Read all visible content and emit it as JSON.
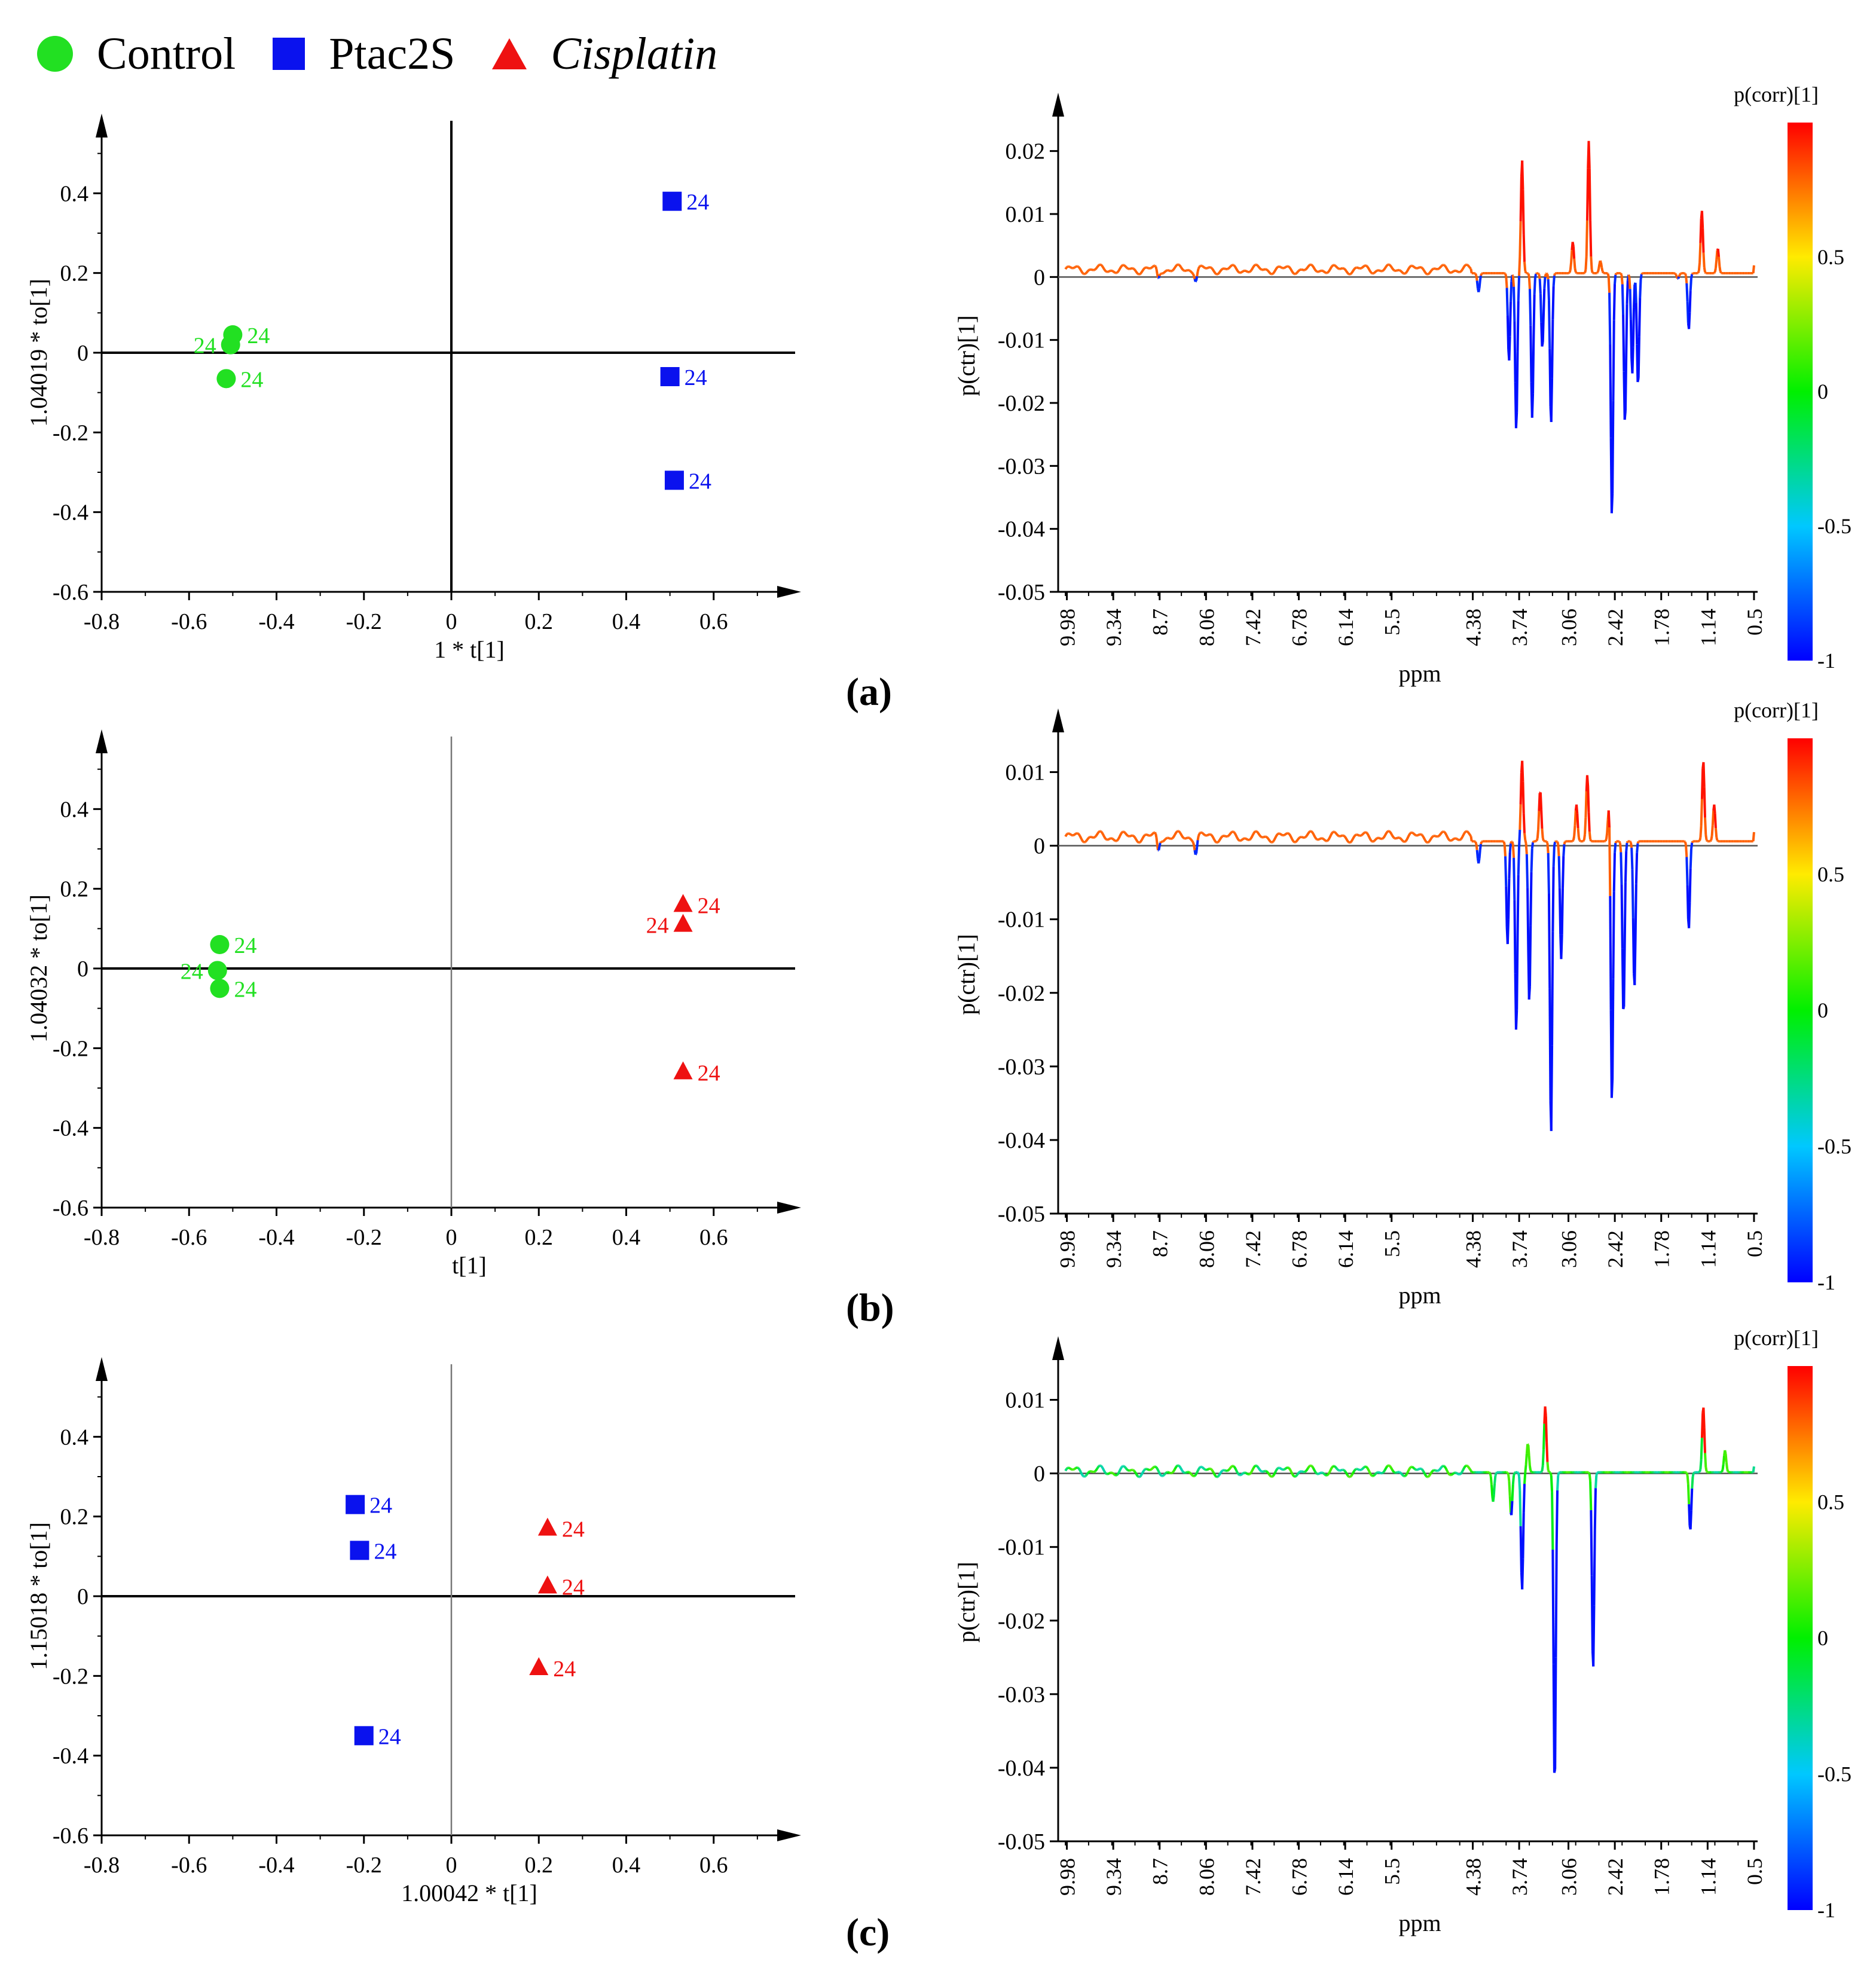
{
  "legend": [
    {
      "label": "Control",
      "shape": "circle",
      "color": "#22e022"
    },
    {
      "label": "Ptac2S",
      "shape": "square",
      "color": "#0a12ee"
    },
    {
      "label": "Cisplatin",
      "shape": "triangle",
      "color": "#ee1111"
    }
  ],
  "panel_labels": [
    "(a)",
    "(b)",
    "(c)"
  ],
  "chart_data": [
    {
      "type": "scatter",
      "panel": "(a)",
      "xlabel": "1 * t[1]",
      "ylabel": "1.04019 * to[1]",
      "xlim": [
        -0.8,
        0.8
      ],
      "ylim": [
        -0.6,
        0.6
      ],
      "xticks": [
        "-0.8",
        "-0.6",
        "-0.4",
        "-0.2",
        "0",
        "0.2",
        "0.4",
        "0.6"
      ],
      "yticks": [
        "-0.6",
        "-0.4",
        "-0.2",
        "0",
        "0.2",
        "0.4"
      ],
      "points": [
        {
          "group": "Control",
          "x": -0.5,
          "y": 0.045,
          "label": "24"
        },
        {
          "group": "Control",
          "x": -0.505,
          "y": 0.02,
          "label": "24"
        },
        {
          "group": "Control",
          "x": -0.515,
          "y": -0.065,
          "label": "24"
        },
        {
          "group": "Ptac2S",
          "x": 0.505,
          "y": 0.38,
          "label": "24"
        },
        {
          "group": "Ptac2S",
          "x": 0.5,
          "y": -0.06,
          "label": "24"
        },
        {
          "group": "Ptac2S",
          "x": 0.51,
          "y": -0.32,
          "label": "24"
        }
      ]
    },
    {
      "type": "line",
      "panel": "(a)",
      "xlabel": "ppm",
      "ylabel": "p(ctr)[1]",
      "xlim": [
        10.1,
        0.45
      ],
      "ylim": [
        -0.05,
        0.025
      ],
      "xticks": [
        "9.98",
        "9.34",
        "8.7",
        "8.06",
        "7.42",
        "6.78",
        "6.14",
        "5.5",
        "4.38",
        "3.74",
        "3.06",
        "2.42",
        "1.78",
        "1.14",
        "0.5"
      ],
      "yticks": [
        "-0.05",
        "-0.04",
        "-0.03",
        "-0.02",
        "-0.01",
        "0",
        "0.01",
        "0.02"
      ],
      "colorbar": {
        "title": "p(corr)[1]",
        "ticks": [
          "0.5",
          "0",
          "-0.5",
          "-1"
        ]
      }
    },
    {
      "type": "scatter",
      "panel": "(b)",
      "xlabel": "t[1]",
      "ylabel": "1.04032 * to[1]",
      "xlim": [
        -0.8,
        0.8
      ],
      "ylim": [
        -0.6,
        0.6
      ],
      "xticks": [
        "-0.8",
        "-0.6",
        "-0.4",
        "-0.2",
        "0",
        "0.2",
        "0.4",
        "0.6"
      ],
      "yticks": [
        "-0.6",
        "-0.4",
        "-0.2",
        "0",
        "0.2",
        "0.4"
      ],
      "points": [
        {
          "group": "Control",
          "x": -0.53,
          "y": 0.06,
          "label": "24"
        },
        {
          "group": "Control",
          "x": -0.535,
          "y": -0.005,
          "label": "24"
        },
        {
          "group": "Control",
          "x": -0.53,
          "y": -0.05,
          "label": "24"
        },
        {
          "group": "Cisplatin",
          "x": 0.53,
          "y": 0.16,
          "label": "24"
        },
        {
          "group": "Cisplatin",
          "x": 0.53,
          "y": 0.11,
          "label": "24"
        },
        {
          "group": "Cisplatin",
          "x": 0.53,
          "y": -0.26,
          "label": "24"
        }
      ]
    },
    {
      "type": "line",
      "panel": "(b)",
      "xlabel": "ppm",
      "ylabel": "p(ctr)[1]",
      "xlim": [
        10.1,
        0.45
      ],
      "ylim": [
        -0.05,
        0.015
      ],
      "xticks": [
        "9.98",
        "9.34",
        "8.7",
        "8.06",
        "7.42",
        "6.78",
        "6.14",
        "5.5",
        "4.38",
        "3.74",
        "3.06",
        "2.42",
        "1.78",
        "1.14",
        "0.5"
      ],
      "yticks": [
        "-0.05",
        "-0.04",
        "-0.03",
        "-0.02",
        "-0.01",
        "0",
        "0.01"
      ],
      "colorbar": {
        "title": "p(corr)[1]",
        "ticks": [
          "0.5",
          "0",
          "-0.5",
          "-1"
        ]
      }
    },
    {
      "type": "scatter",
      "panel": "(c)",
      "xlabel": "1.00042 * t[1]",
      "ylabel": "1.15018 * to[1]",
      "xlim": [
        -0.8,
        0.8
      ],
      "ylim": [
        -0.6,
        0.6
      ],
      "xticks": [
        "-0.8",
        "-0.6",
        "-0.4",
        "-0.2",
        "0",
        "0.2",
        "0.4",
        "0.6"
      ],
      "yticks": [
        "-0.6",
        "-0.4",
        "-0.2",
        "0",
        "0.2",
        "0.4"
      ],
      "points": [
        {
          "group": "Ptac2S",
          "x": -0.22,
          "y": 0.23,
          "label": "24"
        },
        {
          "group": "Ptac2S",
          "x": -0.21,
          "y": 0.115,
          "label": "24"
        },
        {
          "group": "Ptac2S",
          "x": -0.2,
          "y": -0.35,
          "label": "24"
        },
        {
          "group": "Cisplatin",
          "x": 0.22,
          "y": 0.17,
          "label": "24"
        },
        {
          "group": "Cisplatin",
          "x": 0.22,
          "y": 0.025,
          "label": "24"
        },
        {
          "group": "Cisplatin",
          "x": 0.2,
          "y": -0.18,
          "label": "24"
        }
      ]
    },
    {
      "type": "line",
      "panel": "(c)",
      "xlabel": "ppm",
      "ylabel": "p(ctr)[1]",
      "xlim": [
        10.1,
        0.45
      ],
      "ylim": [
        -0.05,
        0.015
      ],
      "xticks": [
        "9.98",
        "9.34",
        "8.7",
        "8.06",
        "7.42",
        "6.78",
        "6.14",
        "5.5",
        "4.38",
        "3.74",
        "3.06",
        "2.42",
        "1.78",
        "1.14",
        "0.5"
      ],
      "yticks": [
        "-0.05",
        "-0.04",
        "-0.03",
        "-0.02",
        "-0.01",
        "0",
        "0.01"
      ],
      "colorbar": {
        "title": "p(corr)[1]",
        "ticks": [
          "0.5",
          "0",
          "-0.5",
          "-1"
        ]
      }
    }
  ]
}
